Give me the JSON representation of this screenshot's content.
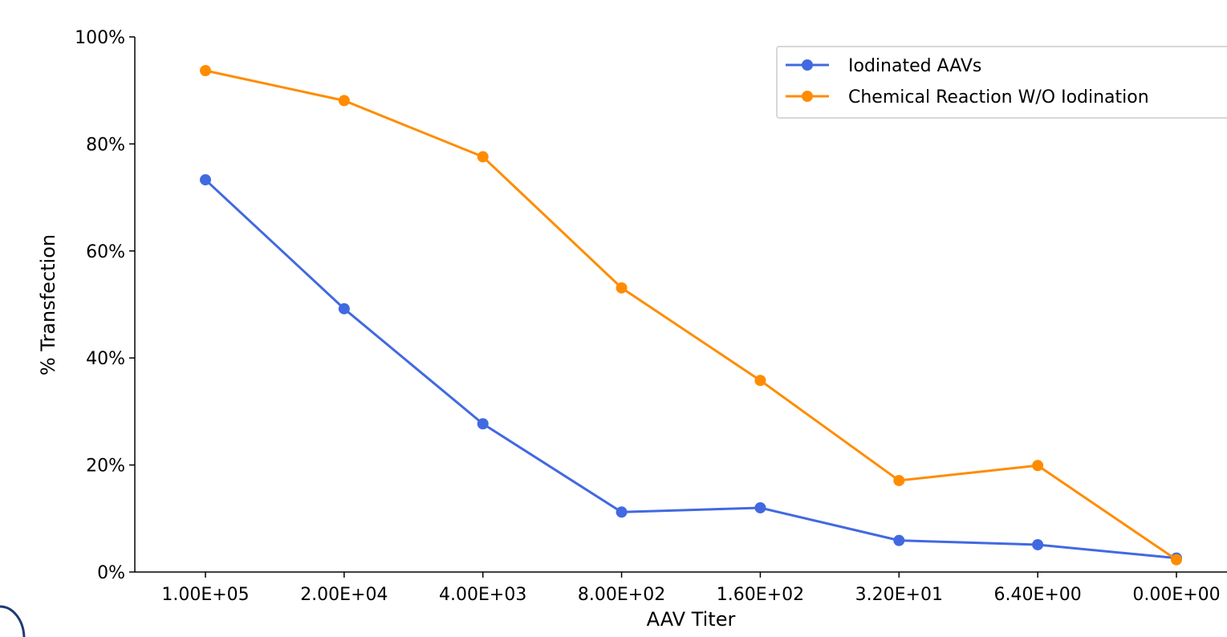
{
  "chart_data": {
    "type": "line",
    "categories": [
      "1.00E+05",
      "2.00E+04",
      "4.00E+03",
      "8.00E+02",
      "1.60E+02",
      "3.20E+01",
      "6.40E+00",
      "0.00E+00"
    ],
    "series": [
      {
        "name": "Iodinated AAVs",
        "color": "#4169E1",
        "values": [
          73.3,
          49.2,
          27.7,
          11.2,
          12.0,
          5.9,
          5.1,
          2.6
        ]
      },
      {
        "name": "Chemical Reaction W/O Iodination",
        "color": "#FF8C00",
        "values": [
          93.7,
          88.1,
          77.6,
          53.1,
          35.8,
          17.1,
          19.9,
          2.3
        ]
      }
    ],
    "xlabel": "AAV Titer",
    "ylabel": "% Transfection",
    "ylim": [
      0,
      100
    ],
    "yticks": [
      "0%",
      "20%",
      "40%",
      "60%",
      "80%",
      "100%"
    ],
    "ytick_values": [
      0,
      20,
      40,
      60,
      80,
      100
    ],
    "legend_position": "top-right",
    "grid": false
  }
}
